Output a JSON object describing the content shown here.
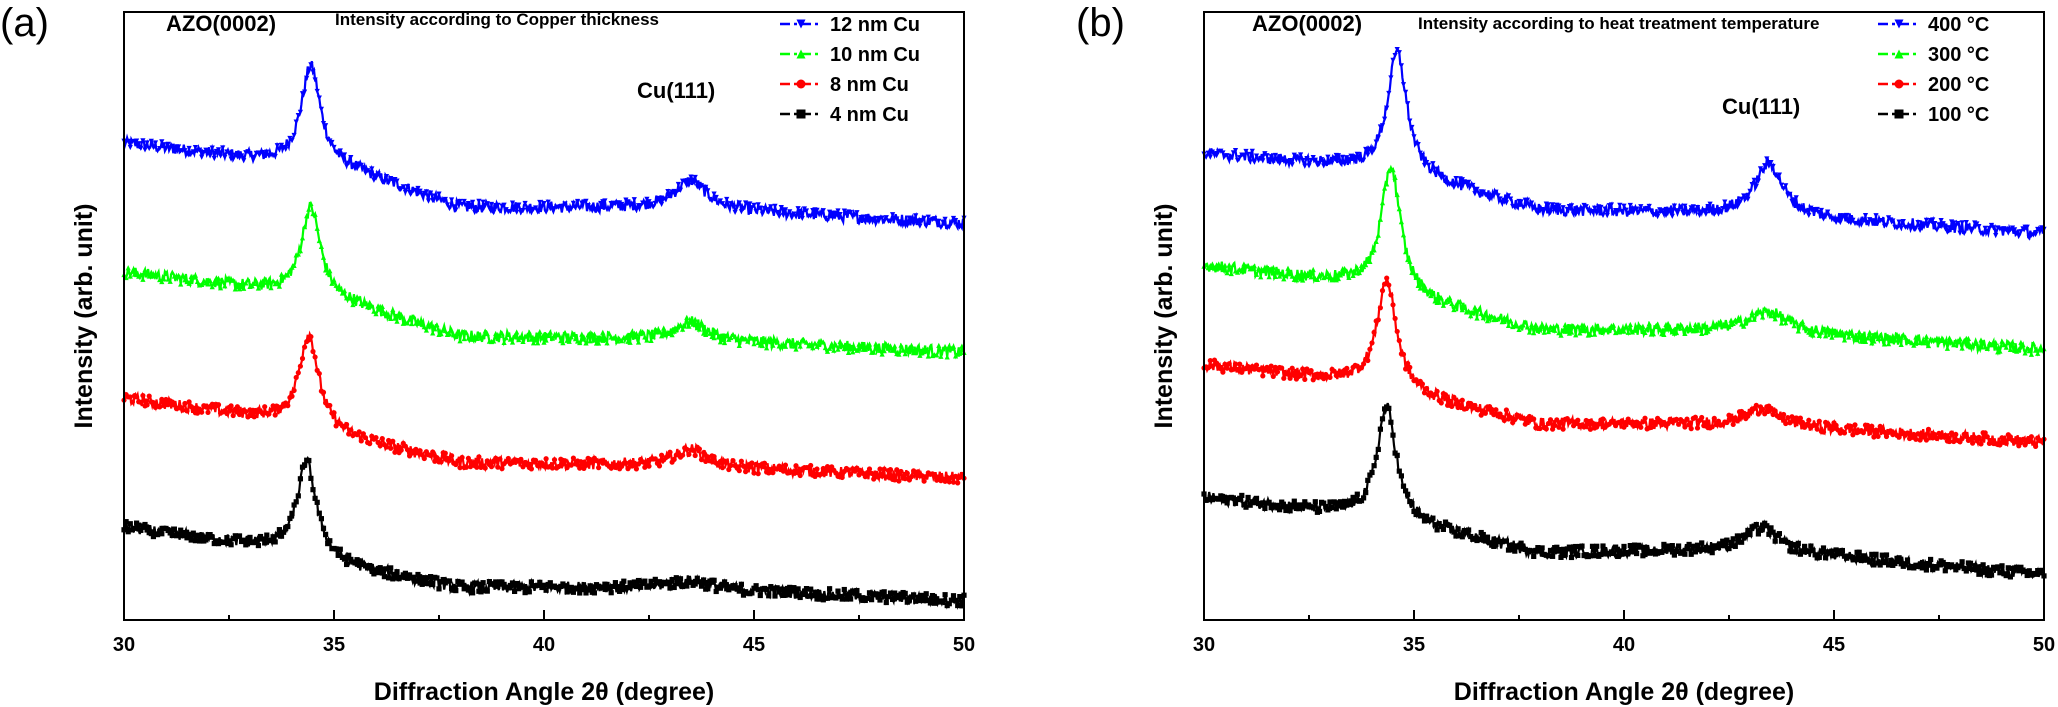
{
  "chart_data": [
    {
      "panel": "(a)",
      "type": "line",
      "inset_title": "Intensity according to Copper thickness",
      "xlabel": "Diffraction Angle 2θ (degree)",
      "ylabel": "Intensity (arb. unit)",
      "xlim": [
        30,
        50
      ],
      "xticks": [
        30,
        35,
        40,
        45,
        50
      ],
      "xtick_labels": [
        "30",
        "35",
        "40",
        "45",
        "50"
      ],
      "y_tick_labels_shown": false,
      "legend_position": "top-right",
      "annotations": [
        {
          "text": "AZO(0002)",
          "x": 34.4
        },
        {
          "text": "Cu(111)",
          "x": 43.4
        }
      ],
      "series": [
        {
          "name": "12 nm Cu",
          "color": "#0000ff",
          "marker": "triangle-down",
          "baseline": [
            [
              30,
              3.7
            ],
            [
              33.5,
              3.56
            ],
            [
              35.5,
              3.48
            ],
            [
              38,
              3.2
            ],
            [
              43,
              3.2
            ],
            [
              50,
              3.08
            ]
          ],
          "peaks": [
            {
              "center": 34.45,
              "height": 0.78,
              "width": 0.28
            },
            {
              "center": 43.5,
              "height": 0.22,
              "width": 0.45
            }
          ]
        },
        {
          "name": "10 nm Cu",
          "color": "#00ff00",
          "marker": "triangle-up",
          "baseline": [
            [
              30,
              2.7
            ],
            [
              33.5,
              2.56
            ],
            [
              35.5,
              2.44
            ],
            [
              38,
              2.2
            ],
            [
              43,
              2.18
            ],
            [
              50,
              2.08
            ]
          ],
          "peaks": [
            {
              "center": 34.45,
              "height": 0.7,
              "width": 0.28
            },
            {
              "center": 43.5,
              "height": 0.14,
              "width": 0.45
            }
          ]
        },
        {
          "name": "8 nm Cu",
          "color": "#ff0000",
          "marker": "circle",
          "baseline": [
            [
              30,
              1.72
            ],
            [
              33.5,
              1.56
            ],
            [
              35.5,
              1.4
            ],
            [
              38,
              1.22
            ],
            [
              43,
              1.2
            ],
            [
              50,
              1.1
            ]
          ],
          "peaks": [
            {
              "center": 34.4,
              "height": 0.73,
              "width": 0.28
            },
            {
              "center": 43.5,
              "height": 0.13,
              "width": 0.45
            }
          ]
        },
        {
          "name": "4 nm Cu",
          "color": "#000000",
          "marker": "square",
          "baseline": [
            [
              30,
              0.72
            ],
            [
              33.5,
              0.56
            ],
            [
              35.5,
              0.4
            ],
            [
              38,
              0.25
            ],
            [
              43,
              0.25
            ],
            [
              50,
              0.15
            ]
          ],
          "peaks": [
            {
              "center": 34.35,
              "height": 0.73,
              "width": 0.28
            },
            {
              "center": 43.5,
              "height": 0.06,
              "width": 0.6
            }
          ]
        }
      ]
    },
    {
      "panel": "(b)",
      "type": "line",
      "inset_title": "Intensity according to heat treatment temperature",
      "xlabel": "Diffraction Angle 2θ (degree)",
      "ylabel": "Intensity (arb. unit)",
      "xlim": [
        30,
        50
      ],
      "xticks": [
        30,
        35,
        40,
        45,
        50
      ],
      "xtick_labels": [
        "30",
        "35",
        "40",
        "45",
        "50"
      ],
      "y_tick_labels_shown": false,
      "legend_position": "top-right",
      "annotations": [
        {
          "text": "AZO(0002)",
          "x": 34.5
        },
        {
          "text": "Cu(111)",
          "x": 43.4
        }
      ],
      "series": [
        {
          "name": "400 °C",
          "color": "#0000ff",
          "marker": "triangle-down",
          "baseline": [
            [
              30,
              3.62
            ],
            [
              33.5,
              3.52
            ],
            [
              35.5,
              3.4
            ],
            [
              38,
              3.18
            ],
            [
              43,
              3.15
            ],
            [
              50,
              3.0
            ]
          ],
          "peaks": [
            {
              "center": 34.6,
              "height": 0.95,
              "width": 0.28
            },
            {
              "center": 43.45,
              "height": 0.4,
              "width": 0.4
            }
          ]
        },
        {
          "name": "300 °C",
          "color": "#00ff00",
          "marker": "triangle-up",
          "baseline": [
            [
              30,
              2.75
            ],
            [
              33.5,
              2.62
            ],
            [
              35.5,
              2.45
            ],
            [
              38,
              2.25
            ],
            [
              43,
              2.25
            ],
            [
              50,
              2.1
            ]
          ],
          "peaks": [
            {
              "center": 34.45,
              "height": 0.98,
              "width": 0.28
            },
            {
              "center": 43.45,
              "height": 0.15,
              "width": 0.55
            }
          ]
        },
        {
          "name": "200 °C",
          "color": "#ff0000",
          "marker": "circle",
          "baseline": [
            [
              30,
              1.98
            ],
            [
              33.5,
              1.85
            ],
            [
              35.5,
              1.7
            ],
            [
              38,
              1.52
            ],
            [
              43,
              1.52
            ],
            [
              50,
              1.38
            ]
          ],
          "peaks": [
            {
              "center": 34.35,
              "height": 0.85,
              "width": 0.28
            },
            {
              "center": 43.3,
              "height": 0.13,
              "width": 0.45
            }
          ]
        },
        {
          "name": "100 °C",
          "color": "#000000",
          "marker": "square",
          "baseline": [
            [
              30,
              0.95
            ],
            [
              33.5,
              0.82
            ],
            [
              35.5,
              0.7
            ],
            [
              38,
              0.52
            ],
            [
              43,
              0.55
            ],
            [
              50,
              0.35
            ]
          ],
          "peaks": [
            {
              "center": 34.35,
              "height": 0.88,
              "width": 0.28
            },
            {
              "center": 43.3,
              "height": 0.17,
              "width": 0.45
            }
          ]
        }
      ]
    }
  ]
}
